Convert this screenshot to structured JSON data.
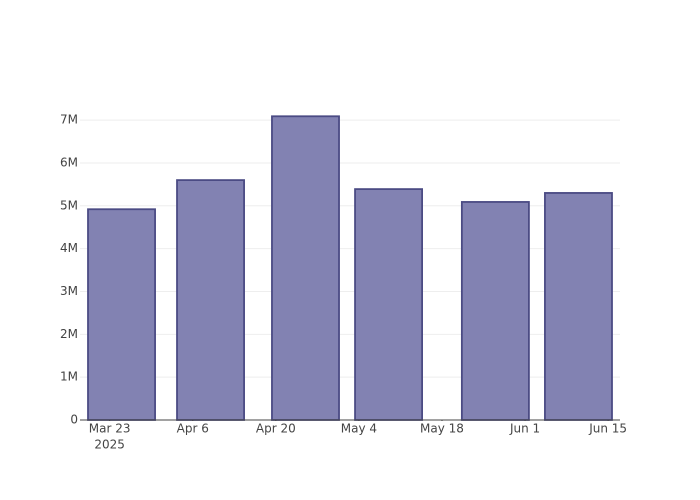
{
  "chart_data": {
    "type": "bar",
    "x": [
      "2025-03-25",
      "2025-04-09",
      "2025-04-25",
      "2025-05-09",
      "2025-05-27",
      "2025-06-10"
    ],
    "values": [
      4920000,
      5600000,
      7090000,
      5390000,
      5090000,
      5300000
    ],
    "color": "#7f7fb0",
    "edge_color": "#4b4b84",
    "xlim": [
      "2025-03-18",
      "2025-06-17"
    ],
    "xticks": [
      {
        "value": "2025-03-23",
        "label": "Mar 23"
      },
      {
        "value": "2025-04-06",
        "label": "Apr 6"
      },
      {
        "value": "2025-04-20",
        "label": "Apr 20"
      },
      {
        "value": "2025-05-04",
        "label": "May 4"
      },
      {
        "value": "2025-05-18",
        "label": "May 18"
      },
      {
        "value": "2025-06-01",
        "label": "Jun 1"
      },
      {
        "value": "2025-06-15",
        "label": "Jun 15"
      }
    ],
    "x_year_label": "2025",
    "ylim": [
      0,
      7470000
    ],
    "yticks": [
      0,
      {
        "value": 1000000,
        "label": "1M"
      },
      {
        "value": 2000000,
        "label": "2M"
      },
      {
        "value": 3000000,
        "label": "3M"
      },
      {
        "value": 4000000,
        "label": "4M"
      },
      {
        "value": 5000000,
        "label": "5M"
      },
      {
        "value": 6000000,
        "label": "6M"
      },
      {
        "value": 7000000,
        "label": "7M"
      }
    ],
    "grid": true
  }
}
